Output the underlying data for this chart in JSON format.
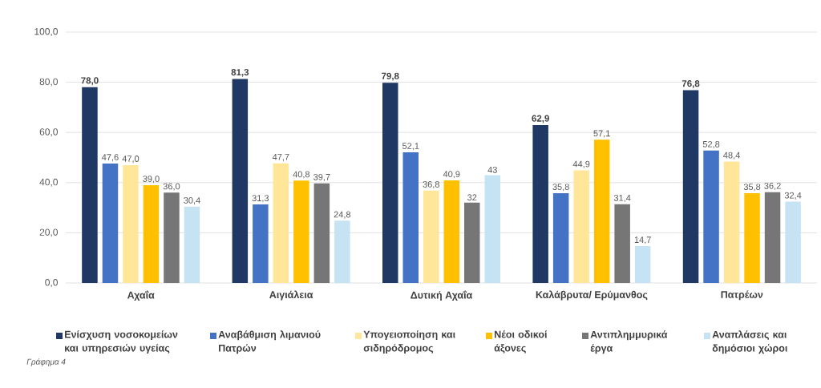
{
  "chart_data": {
    "type": "bar",
    "categories": [
      "Αχαΐα",
      "Αιγιάλεια",
      "Δυτική Αχαΐα",
      "Καλάβρυτα/ Ερύμανθος",
      "Πατρέων"
    ],
    "series": [
      {
        "name": "Ενίσχυση νοσοκομείων και υπηρεσιών υγείας",
        "color": "#203864",
        "values": [
          78.0,
          81.3,
          79.8,
          62.9,
          76.8
        ],
        "value_labels": [
          "78,0",
          "81,3",
          "79,8",
          "62,9",
          "76,8"
        ]
      },
      {
        "name": "Αναβάθμιση λιμανιού Πατρών",
        "color": "#4472c4",
        "values": [
          47.6,
          31.3,
          52.1,
          35.8,
          52.8
        ],
        "value_labels": [
          "47,6",
          "31,3",
          "52,1",
          "35,8",
          "52,8"
        ]
      },
      {
        "name": "Υπογειοποίηση και σιδηρόδρομος",
        "color": "#ffe699",
        "values": [
          47.0,
          47.7,
          36.8,
          44.9,
          48.4
        ],
        "value_labels": [
          "47,0",
          "47,7",
          "36,8",
          "44,9",
          "48,4"
        ]
      },
      {
        "name": "Νέοι οδικοί άξονες",
        "color": "#ffc000",
        "values": [
          39.0,
          40.8,
          40.9,
          57.1,
          35.8
        ],
        "value_labels": [
          "39,0",
          "40,8",
          "40,9",
          "57,1",
          "35,8"
        ]
      },
      {
        "name": "Αντιπλημμυρικά έργα",
        "color": "#767676",
        "values": [
          36.0,
          39.7,
          32,
          31.4,
          36.2
        ],
        "value_labels": [
          "36,0",
          "39,7",
          "32",
          "31,4",
          "36,2"
        ]
      },
      {
        "name": "Αναπλάσεις και δημόσιοι χώροι",
        "color": "#c5e3f3",
        "values": [
          30.4,
          24.8,
          43,
          14.7,
          32.4
        ],
        "value_labels": [
          "30,4",
          "24,8",
          "43",
          "14,7",
          "32,4"
        ]
      }
    ],
    "ylim": [
      0,
      100
    ],
    "yticks": [
      {
        "value": 0,
        "label": "0,0"
      },
      {
        "value": 20,
        "label": "20,0"
      },
      {
        "value": 40,
        "label": "40,0"
      },
      {
        "value": 60,
        "label": "60,0"
      },
      {
        "value": 80,
        "label": "80,0"
      },
      {
        "value": 100,
        "label": "100,0"
      }
    ],
    "grid": "y",
    "legend": "bottom",
    "annotations": [
      "Γράφημα 4"
    ]
  }
}
